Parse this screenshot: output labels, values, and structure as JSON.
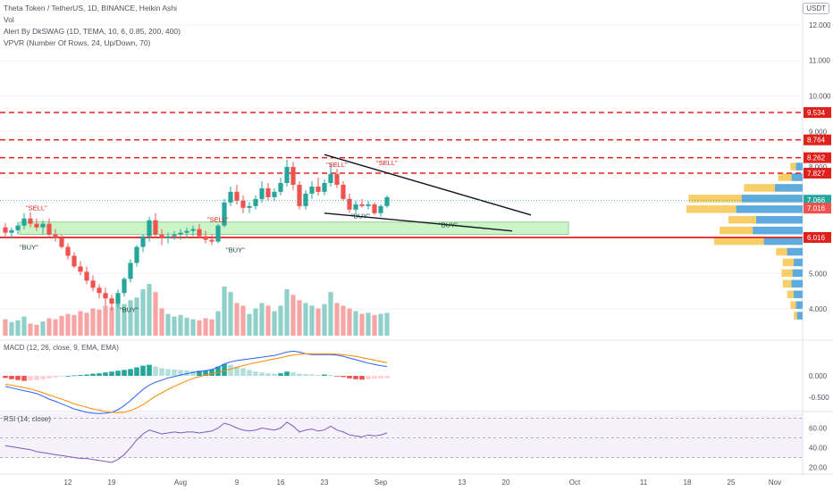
{
  "header": {
    "title": "Theta Token / TetherUS, 1D, BINANCE, Heikin Ashi",
    "vol": "Vol",
    "alert": "Alert By DkSWAG (1D, TEMA, 10, 6, 0.85, 200, 400)",
    "vpvr": "VPVR (Number Of Rows, 24, Up/Down, 70)",
    "currency": "USDT"
  },
  "macd_label": "MACD (12, 26, close, 9, EMA, EMA)",
  "rsi_label": "RSI (14, close)",
  "colors": {
    "up": "#26a69a",
    "down": "#ef5350",
    "volUp": "#8fd0c8",
    "volDown": "#f5a5a3",
    "level": "#e0201b",
    "zone": "#b6f0b0",
    "macd": "#2962ff",
    "signal": "#ff8a00",
    "rsi": "#7e57c2"
  },
  "chart_data": {
    "type": "candlestick",
    "price_axis": {
      "min": 3.2,
      "max": 12.2,
      "ticks": [
        "4.000",
        "5.000",
        "6.000",
        "7.000",
        "8.000",
        "9.000",
        "10.000",
        "11.000",
        "12.000"
      ]
    },
    "x_axis": {
      "ticks": [
        "12",
        "19",
        "Aug",
        "9",
        "16",
        "23",
        "Sep",
        "13",
        "20",
        "Oct",
        "11",
        "18",
        "25",
        "Nov"
      ]
    },
    "candles": [
      [
        6.3,
        6.42,
        6.05,
        6.15
      ],
      [
        6.15,
        6.3,
        6.0,
        6.22
      ],
      [
        6.22,
        6.45,
        6.1,
        6.35
      ],
      [
        6.35,
        6.7,
        6.25,
        6.55
      ],
      [
        6.55,
        6.72,
        6.3,
        6.4
      ],
      [
        6.4,
        6.55,
        6.2,
        6.3
      ],
      [
        6.3,
        6.5,
        6.1,
        6.4
      ],
      [
        6.4,
        6.55,
        6.05,
        6.1
      ],
      [
        6.1,
        6.25,
        5.9,
        6.0
      ],
      [
        6.0,
        6.1,
        5.7,
        5.75
      ],
      [
        5.75,
        5.85,
        5.4,
        5.5
      ],
      [
        5.5,
        5.6,
        5.15,
        5.2
      ],
      [
        5.2,
        5.35,
        4.95,
        5.05
      ],
      [
        5.05,
        5.2,
        4.7,
        4.8
      ],
      [
        4.8,
        4.95,
        4.5,
        4.6
      ],
      [
        4.6,
        4.7,
        4.3,
        4.45
      ],
      [
        4.45,
        4.6,
        4.1,
        4.3
      ],
      [
        4.3,
        4.4,
        3.95,
        4.15
      ],
      [
        4.15,
        4.55,
        4.05,
        4.45
      ],
      [
        4.45,
        4.9,
        4.35,
        4.85
      ],
      [
        4.85,
        5.4,
        4.75,
        5.3
      ],
      [
        5.3,
        5.8,
        5.2,
        5.75
      ],
      [
        5.75,
        6.1,
        5.6,
        6.05
      ],
      [
        6.05,
        6.6,
        5.9,
        6.5
      ],
      [
        6.5,
        6.7,
        6.0,
        6.1
      ],
      [
        6.1,
        6.25,
        5.8,
        6.0
      ],
      [
        6.0,
        6.15,
        5.85,
        6.05
      ],
      [
        6.05,
        6.2,
        5.95,
        6.1
      ],
      [
        6.1,
        6.25,
        5.95,
        6.15
      ],
      [
        6.15,
        6.3,
        6.0,
        6.2
      ],
      [
        6.2,
        6.35,
        6.05,
        6.25
      ],
      [
        6.25,
        6.4,
        6.0,
        6.05
      ],
      [
        6.05,
        6.2,
        5.85,
        5.95
      ],
      [
        5.95,
        6.1,
        5.8,
        5.9
      ],
      [
        5.9,
        6.4,
        5.85,
        6.35
      ],
      [
        6.35,
        7.1,
        6.3,
        7.0
      ],
      [
        7.0,
        7.45,
        6.9,
        7.3
      ],
      [
        7.3,
        7.5,
        6.95,
        7.05
      ],
      [
        7.05,
        7.2,
        6.7,
        6.85
      ],
      [
        6.85,
        7.0,
        6.7,
        6.9
      ],
      [
        6.9,
        7.2,
        6.8,
        7.1
      ],
      [
        7.1,
        7.6,
        7.0,
        7.4
      ],
      [
        7.4,
        7.55,
        7.05,
        7.15
      ],
      [
        7.15,
        7.4,
        7.05,
        7.3
      ],
      [
        7.3,
        7.7,
        7.2,
        7.55
      ],
      [
        7.55,
        8.2,
        7.45,
        8.0
      ],
      [
        8.0,
        8.15,
        7.35,
        7.5
      ],
      [
        7.5,
        7.6,
        6.8,
        6.9
      ],
      [
        6.9,
        7.35,
        6.8,
        7.25
      ],
      [
        7.25,
        7.6,
        7.1,
        7.45
      ],
      [
        7.45,
        7.7,
        7.2,
        7.3
      ],
      [
        7.3,
        7.65,
        7.2,
        7.55
      ],
      [
        7.55,
        8.1,
        7.45,
        7.8
      ],
      [
        7.8,
        7.95,
        7.4,
        7.5
      ],
      [
        7.5,
        7.6,
        7.05,
        7.1
      ],
      [
        7.1,
        7.25,
        6.7,
        6.8
      ],
      [
        6.8,
        7.05,
        6.7,
        6.95
      ],
      [
        6.95,
        7.1,
        6.85,
        6.9
      ],
      [
        6.9,
        7.05,
        6.8,
        6.95
      ],
      [
        6.95,
        7.0,
        6.65,
        6.7
      ],
      [
        6.7,
        6.95,
        6.6,
        6.9
      ],
      [
        6.9,
        7.2,
        6.85,
        7.15
      ]
    ],
    "volume": [
      0.3,
      0.25,
      0.28,
      0.35,
      0.22,
      0.2,
      0.26,
      0.32,
      0.3,
      0.36,
      0.4,
      0.38,
      0.45,
      0.42,
      0.5,
      0.48,
      0.55,
      0.52,
      0.6,
      0.58,
      0.65,
      0.7,
      0.85,
      0.95,
      0.8,
      0.5,
      0.4,
      0.35,
      0.38,
      0.33,
      0.3,
      0.28,
      0.32,
      0.3,
      0.45,
      0.9,
      0.8,
      0.6,
      0.55,
      0.4,
      0.5,
      0.6,
      0.55,
      0.45,
      0.55,
      0.85,
      0.75,
      0.65,
      0.6,
      0.55,
      0.5,
      0.58,
      0.8,
      0.6,
      0.55,
      0.5,
      0.45,
      0.4,
      0.42,
      0.38,
      0.4,
      0.42
    ],
    "macd_hist": [
      -0.05,
      -0.08,
      -0.1,
      -0.12,
      -0.11,
      -0.1,
      -0.08,
      -0.06,
      -0.04,
      -0.02,
      0.0,
      0.01,
      0.02,
      0.03,
      0.05,
      0.06,
      0.08,
      0.1,
      0.12,
      0.14,
      0.16,
      0.2,
      0.24,
      0.26,
      0.22,
      0.18,
      0.16,
      0.15,
      0.14,
      0.13,
      0.12,
      0.12,
      0.13,
      0.15,
      0.22,
      0.28,
      0.26,
      0.22,
      0.18,
      0.14,
      0.1,
      0.08,
      0.06,
      0.05,
      0.06,
      0.1,
      0.08,
      0.05,
      0.04,
      0.03,
      0.02,
      0.03,
      0.02,
      -0.01,
      -0.03,
      -0.06,
      -0.08,
      -0.09,
      -0.08,
      -0.07,
      -0.06,
      -0.05
    ],
    "macd_line": [
      -0.25,
      -0.28,
      -0.32,
      -0.35,
      -0.38,
      -0.42,
      -0.48,
      -0.55,
      -0.6,
      -0.66,
      -0.72,
      -0.78,
      -0.82,
      -0.86,
      -0.88,
      -0.89,
      -0.88,
      -0.86,
      -0.8,
      -0.7,
      -0.58,
      -0.45,
      -0.32,
      -0.22,
      -0.15,
      -0.1,
      -0.05,
      -0.02,
      0.02,
      0.05,
      0.08,
      0.1,
      0.12,
      0.15,
      0.2,
      0.28,
      0.33,
      0.36,
      0.38,
      0.4,
      0.42,
      0.44,
      0.46,
      0.48,
      0.52,
      0.56,
      0.58,
      0.56,
      0.52,
      0.5,
      0.5,
      0.5,
      0.5,
      0.49,
      0.46,
      0.42,
      0.38,
      0.34,
      0.3,
      0.27,
      0.24,
      0.22
    ],
    "signal_line": [
      -0.2,
      -0.22,
      -0.25,
      -0.28,
      -0.31,
      -0.35,
      -0.4,
      -0.45,
      -0.5,
      -0.55,
      -0.6,
      -0.66,
      -0.7,
      -0.74,
      -0.78,
      -0.81,
      -0.84,
      -0.86,
      -0.87,
      -0.86,
      -0.82,
      -0.76,
      -0.68,
      -0.58,
      -0.48,
      -0.4,
      -0.32,
      -0.25,
      -0.18,
      -0.12,
      -0.06,
      -0.02,
      0.02,
      0.05,
      0.08,
      0.12,
      0.16,
      0.2,
      0.24,
      0.28,
      0.31,
      0.34,
      0.37,
      0.4,
      0.43,
      0.46,
      0.49,
      0.51,
      0.52,
      0.52,
      0.52,
      0.52,
      0.52,
      0.51,
      0.5,
      0.48,
      0.46,
      0.43,
      0.4,
      0.37,
      0.34,
      0.31
    ],
    "macd_axis": {
      "min": -0.8,
      "max": 0.8,
      "ticks": [
        "0.000",
        "-0.500"
      ]
    },
    "rsi": [
      42,
      41,
      40,
      39,
      38,
      36,
      35,
      34,
      33,
      32,
      31,
      30,
      29,
      29,
      28,
      27,
      26,
      25,
      28,
      33,
      40,
      48,
      54,
      58,
      56,
      54,
      55,
      56,
      55,
      56,
      56,
      55,
      56,
      57,
      60,
      65,
      63,
      60,
      58,
      57,
      58,
      60,
      59,
      58,
      60,
      66,
      62,
      56,
      58,
      59,
      57,
      58,
      62,
      58,
      56,
      53,
      52,
      51,
      53,
      52,
      53,
      55
    ],
    "rsi_axis": {
      "min": 15,
      "max": 75,
      "ticks": [
        "60.00",
        "40.00",
        "20.00"
      ]
    },
    "price_levels": [
      {
        "value": 9.534,
        "label": "9.534",
        "dashed": true
      },
      {
        "value": 8.764,
        "label": "8.764",
        "dashed": true
      },
      {
        "value": 8.262,
        "label": "8.262",
        "dashed": true
      },
      {
        "value": 7.827,
        "label": "7.827",
        "dashed": true
      },
      {
        "value": 6.016,
        "label": "6.016",
        "dashed": false
      }
    ],
    "current_price": {
      "value": 7.066,
      "label": "7.066"
    },
    "secondary_price": {
      "value": 7.016,
      "label": "7.016"
    },
    "zone": {
      "from": 6.1,
      "to": 6.45,
      "start_index": 8,
      "end_index": 90
    },
    "triangle": {
      "upper": [
        [
          51,
          8.35
        ],
        [
          84,
          6.65
        ]
      ],
      "lower": [
        [
          51,
          6.7
        ],
        [
          81,
          6.2
        ]
      ]
    },
    "signals": [
      {
        "text": "\"SELL\"",
        "index": 5,
        "price": 6.78,
        "type": "sell"
      },
      {
        "text": "\"BUY\"",
        "index": 4,
        "price": 5.68,
        "type": "buy"
      },
      {
        "text": "\"BUY\"",
        "index": 20,
        "price": 3.92,
        "type": "buy"
      },
      {
        "text": "\"SELL\"",
        "index": 34,
        "price": 6.45,
        "type": "sell"
      },
      {
        "text": "\"BUY\"",
        "index": 37,
        "price": 5.6,
        "type": "buy"
      },
      {
        "text": "\"SELL\"",
        "index": 53,
        "price": 8.0,
        "type": "sell"
      },
      {
        "text": "\"BUY\"",
        "index": 57,
        "price": 6.55,
        "type": "buy"
      },
      {
        "text": "\"SELL\"",
        "index": 61,
        "price": 8.05,
        "type": "sell"
      },
      {
        "text": "\"BUY\"",
        "index": 71,
        "price": 6.3,
        "type": "buy"
      }
    ],
    "vpvr_rows": [
      {
        "price": 3.8,
        "up": 0.05,
        "down": 0.03
      },
      {
        "price": 4.1,
        "up": 0.06,
        "down": 0.05
      },
      {
        "price": 4.4,
        "up": 0.08,
        "down": 0.06
      },
      {
        "price": 4.7,
        "up": 0.1,
        "down": 0.08
      },
      {
        "price": 5.0,
        "up": 0.09,
        "down": 0.1
      },
      {
        "price": 5.3,
        "up": 0.08,
        "down": 0.1
      },
      {
        "price": 5.6,
        "up": 0.14,
        "down": 0.1
      },
      {
        "price": 5.9,
        "up": 0.35,
        "down": 0.45
      },
      {
        "price": 6.2,
        "up": 0.45,
        "down": 0.3
      },
      {
        "price": 6.5,
        "up": 0.42,
        "down": 0.25
      },
      {
        "price": 6.8,
        "up": 0.6,
        "down": 0.45
      },
      {
        "price": 7.1,
        "up": 0.55,
        "down": 0.48
      },
      {
        "price": 7.4,
        "up": 0.25,
        "down": 0.28
      },
      {
        "price": 7.7,
        "up": 0.1,
        "down": 0.12
      },
      {
        "price": 8.0,
        "up": 0.06,
        "down": 0.05
      }
    ]
  }
}
